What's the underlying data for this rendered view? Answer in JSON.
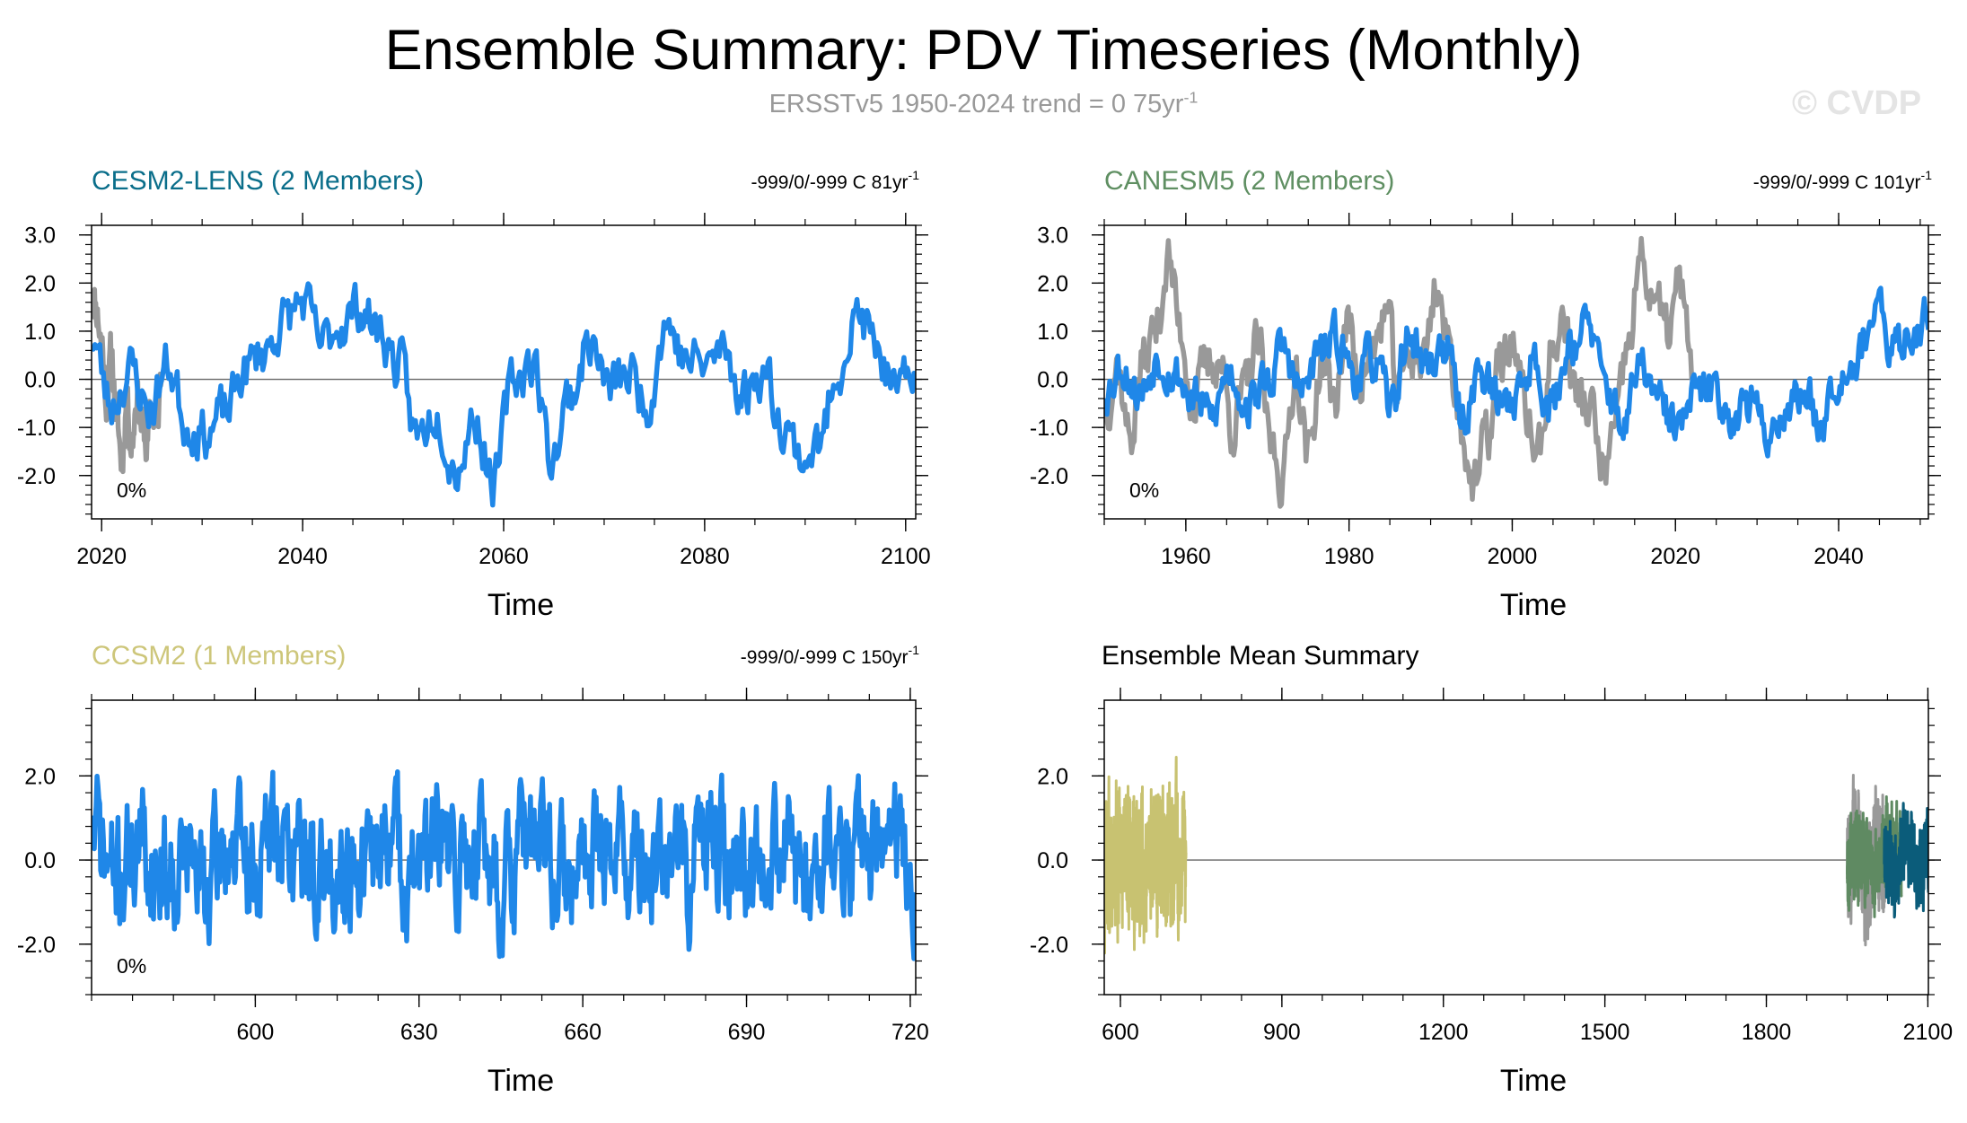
{
  "title": "Ensemble Summary: PDV Timeseries (Monthly)",
  "subtitle": {
    "text": "ERSSTv5 1950-2024 trend = 0 75yr",
    "superscript": "-1"
  },
  "watermark": "© CVDP",
  "colors": {
    "blue": "#1f87e8",
    "gray": "#999999",
    "cesm_title": "#0a6e8a",
    "canesm_title": "#5f8f62",
    "ccsm_title": "#cdc67a",
    "summary_title": "#000000",
    "mean_ccsm": "#c8c271",
    "mean_canesm": "#5f8a62",
    "mean_cesm": "#0b5c7a"
  },
  "chart_data": [
    {
      "id": "cesm2-lens",
      "type": "line",
      "title": "CESM2-LENS (2 Members)",
      "title_color_key": "cesm_title",
      "stat_text": "-999/0/-999 C 81yr",
      "stat_sup": "-1",
      "percent_label": "0%",
      "xlabel": "Time",
      "xlim": [
        2019,
        2101
      ],
      "ylim": [
        -2.9,
        3.2
      ],
      "xticks": [
        2020,
        2040,
        2060,
        2080,
        2100
      ],
      "yticks": [
        -2.0,
        -1.0,
        0.0,
        1.0,
        2.0,
        3.0
      ],
      "ytick_labels": [
        "-2.0",
        "-1.0",
        "0.0",
        "1.0",
        "2.0",
        "3.0"
      ],
      "series": [
        {
          "name": "ensemble-member-gray",
          "color_key": "gray",
          "x_start": 2019.0,
          "x_end": 2026.0,
          "anchors": [
            1.9,
            1.5,
            0.8,
            -0.4,
            0.5,
            -0.8,
            -1.7,
            -0.4,
            -1.3,
            -0.3,
            -0.9,
            -1.4,
            -0.6,
            -1.0,
            0.1
          ],
          "noise": 0.4,
          "seed": 11
        },
        {
          "name": "ensemble-member-blue",
          "color_key": "blue",
          "x_start": 2019.0,
          "x_end": 2101.0,
          "anchors": [
            0.9,
            -0.5,
            0.2,
            -0.6,
            0.3,
            -0.9,
            -1.1,
            -0.7,
            0.2,
            0.6,
            1.2,
            1.6,
            0.7,
            1.2,
            1.5,
            1.0,
            0.3,
            -1.2,
            -0.6,
            -1.8,
            -0.8,
            -2.1,
            0.0,
            0.4,
            -1.6,
            -0.3,
            0.8,
            -0.2,
            0.1,
            -0.4,
            1.2,
            0.4,
            0.3,
            0.6,
            -0.3,
            0.2,
            -0.8,
            -1.6,
            -1.4,
            0.4,
            1.3,
            0.6,
            -0.5,
            0.3
          ],
          "noise": 0.45,
          "seed": 23
        }
      ]
    },
    {
      "id": "canesm5",
      "type": "line",
      "title": "CANESM5 (2 Members)",
      "title_color_key": "canesm_title",
      "stat_text": "-999/0/-999 C 101yr",
      "stat_sup": "-1",
      "percent_label": "0%",
      "xlabel": "Time",
      "xlim": [
        1950,
        2051
      ],
      "ylim": [
        -2.9,
        3.2
      ],
      "xticks": [
        1960,
        1980,
        2000,
        2020,
        2040
      ],
      "yticks": [
        -2.0,
        -1.0,
        0.0,
        1.0,
        2.0,
        3.0
      ],
      "ytick_labels": [
        "-2.0",
        "-1.0",
        "0.0",
        "1.0",
        "2.0",
        "3.0"
      ],
      "series": [
        {
          "name": "ensemble-member-gray",
          "color_key": "gray",
          "x_start": 1950.0,
          "x_end": 2022.0,
          "anchors": [
            -0.6,
            0.4,
            -1.2,
            0.3,
            1.0,
            2.5,
            1.0,
            -0.5,
            0.2,
            0.5,
            -0.9,
            -0.3,
            0.7,
            -1.3,
            -2.0,
            0.3,
            -1.6,
            0.4,
            -0.5,
            1.1,
            0.2,
            0.5,
            1.4,
            -0.2,
            0.6,
            0.4,
            2.0,
            0.6,
            -1.0,
            -2.3,
            -1.2,
            0.3,
            0.8,
            -0.7,
            -1.6,
            0.5,
            1.2,
            -0.4,
            -0.6,
            -1.9,
            -1.2,
            0.6,
            2.4,
            1.8,
            0.9,
            1.9,
            0.4
          ],
          "noise": 0.5,
          "seed": 37
        },
        {
          "name": "ensemble-member-blue",
          "color_key": "blue",
          "x_start": 1950.0,
          "x_end": 2051.0,
          "anchors": [
            -0.2,
            0.3,
            -0.3,
            0.5,
            0.1,
            -0.4,
            -0.8,
            0.2,
            -0.5,
            -0.1,
            0.6,
            -0.3,
            0.5,
            0.8,
            0.1,
            0.4,
            -0.6,
            0.9,
            0.3,
            0.7,
            -0.8,
            0.2,
            -0.5,
            -0.3,
            0.4,
            -0.6,
            0.8,
            1.1,
            -0.2,
            -0.9,
            0.3,
            -0.6,
            -1.0,
            -0.4,
            -0.2,
            -0.7,
            -0.5,
            -1.1,
            -0.6,
            -0.3,
            -0.8,
            0.2,
            0.5,
            1.4,
            0.6,
            1.0,
            1.3
          ],
          "noise": 0.4,
          "seed": 53
        }
      ]
    },
    {
      "id": "ccsm2",
      "type": "line",
      "title": "CCSM2 (1 Members)",
      "title_color_key": "ccsm_title",
      "stat_text": "-999/0/-999 C 150yr",
      "stat_sup": "-1",
      "percent_label": "0%",
      "xlabel": "Time",
      "xlim": [
        570,
        721
      ],
      "ylim": [
        -3.2,
        3.8
      ],
      "xticks": [
        600,
        630,
        660,
        690,
        720
      ],
      "yticks": [
        -2.0,
        0.0,
        2.0
      ],
      "ytick_labels": [
        "-2.0",
        "0.0",
        "2.0"
      ],
      "series": [
        {
          "name": "ensemble-member-blue",
          "color_key": "blue",
          "x_start": 570.0,
          "x_end": 721.0,
          "anchors": [
            0.8,
            -0.4,
            0.3,
            -0.2,
            0.1,
            -0.6,
            0.4,
            -0.3,
            0.6,
            0.2,
            -0.5,
            0.1,
            -0.3,
            0.7,
            -0.4,
            0.3,
            -0.2,
            0.5,
            -0.6,
            0.4,
            0.0,
            -0.7,
            0.6,
            0.3,
            -0.2,
            0.1,
            -0.4,
            0.5,
            -0.3,
            0.2,
            0.6,
            -0.5,
            0.3,
            -0.1,
            0.4,
            0.8,
            -0.6
          ],
          "noise": 1.15,
          "seed": 71
        }
      ]
    },
    {
      "id": "ensemble-mean-summary",
      "type": "line",
      "title": "Ensemble Mean Summary",
      "title_color_key": "summary_title",
      "xlabel": "Time",
      "xlim": [
        570,
        2101
      ],
      "ylim": [
        -3.2,
        3.8
      ],
      "xticks": [
        600,
        900,
        1200,
        1500,
        1800,
        2100
      ],
      "yticks": [
        -2.0,
        0.0,
        2.0
      ],
      "ytick_labels": [
        "-2.0",
        "0.0",
        "2.0"
      ],
      "series": [
        {
          "name": "ccsm2-mean",
          "color_key": "mean_ccsm",
          "x_start": 570.0,
          "x_end": 722.0,
          "anchors": [
            0.0,
            0.3,
            -0.4,
            0.2,
            0.0
          ],
          "noise": 1.3,
          "seed": 91,
          "samples": 700
        },
        {
          "name": "canesm5-gray",
          "color_key": "gray",
          "x_start": 1950.0,
          "x_end": 2022.0,
          "anchors": [
            0.0,
            0.5,
            -0.6,
            0.3,
            0.0
          ],
          "noise": 1.0,
          "seed": 101,
          "samples": 450
        },
        {
          "name": "canesm5-mean",
          "color_key": "mean_canesm",
          "x_start": 1950.0,
          "x_end": 2051.0,
          "anchors": [
            0.0,
            0.2,
            -0.3,
            0.4,
            0.1
          ],
          "noise": 0.75,
          "seed": 113,
          "samples": 500
        },
        {
          "name": "cesm2-mean",
          "color_key": "mean_cesm",
          "x_start": 2019.0,
          "x_end": 2101.0,
          "anchors": [
            0.2,
            -0.4,
            0.5,
            -0.3,
            0.3
          ],
          "noise": 0.7,
          "seed": 127,
          "samples": 420
        }
      ]
    }
  ]
}
